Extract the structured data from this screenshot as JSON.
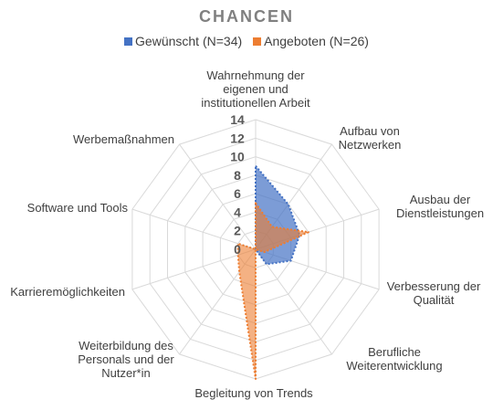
{
  "chart_data": {
    "type": "radar",
    "title": "CHANCEN",
    "categories": [
      "Wahrnehmung der eigenen und institutionellen Arbeit",
      "Aufbau von Netzwerken",
      "Ausbau der Dienstleistungen",
      "Verbesserung der Qualität",
      "Berufliche Weiterentwicklung",
      "Begleitung von Trends",
      "Weiterbildung des Personals und der Nutzer*in",
      "Karrieremöglichkeiten",
      "Software und Tools",
      "Werbemaßnahmen"
    ],
    "category_label_lines": [
      [
        "Wahrnehmung der",
        "eigenen und",
        "institutionellen Arbeit"
      ],
      [
        "Aufbau von",
        "Netzwerken"
      ],
      [
        "Ausbau der",
        "Dienstleistungen"
      ],
      [
        "Verbesserung der",
        "Qualität"
      ],
      [
        "Berufliche",
        "Weiterentwicklung"
      ],
      [
        "Begleitung von Trends"
      ],
      [
        "Weiterbildung des",
        "Personals und der",
        "Nutzer*in"
      ],
      [
        "Karrieremöglichkeiten"
      ],
      [
        "Software und Tools"
      ],
      [
        "Werbemaßnahmen"
      ]
    ],
    "series": [
      {
        "name": "Gewünscht (N=34)",
        "color": "#4472C4",
        "values": [
          9,
          6,
          5,
          4,
          2,
          0,
          0,
          0,
          0,
          0
        ]
      },
      {
        "name": "Angeboten (N=26)",
        "color": "#ED7D31",
        "values": [
          5,
          3,
          6,
          1,
          0,
          14,
          3,
          2,
          2,
          0
        ]
      }
    ],
    "r_range": [
      0,
      14
    ],
    "r_ticks": [
      "0",
      "2",
      "4",
      "6",
      "8",
      "10",
      "12",
      "14"
    ],
    "grid": true,
    "legend_position": "top"
  }
}
